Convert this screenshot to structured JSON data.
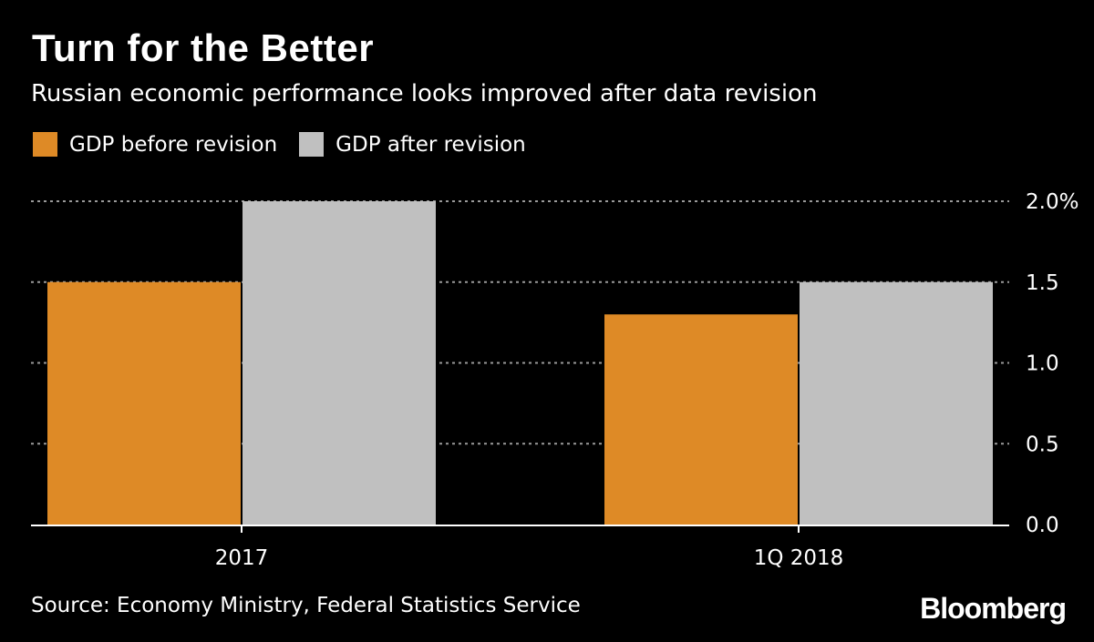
{
  "header": {
    "title": "Turn for the Better",
    "subtitle": "Russian economic performance looks improved after data revision"
  },
  "footer": {
    "source": "Source: Economy Ministry, Federal Statistics Service",
    "brand": "Bloomberg"
  },
  "colors": {
    "background": "#000000",
    "before_revision": "#de8a26",
    "after_revision": "#c0c0c0",
    "grid": "#9a9a9a",
    "text": "#ffffff"
  },
  "chart_data": {
    "type": "bar",
    "title": "Turn for the Better",
    "subtitle": "Russian economic performance looks improved after data revision",
    "categories": [
      "2017",
      "1Q 2018"
    ],
    "series": [
      {
        "name": "GDP before revision",
        "values": [
          1.5,
          1.3
        ],
        "color": "#de8a26"
      },
      {
        "name": "GDP after revision",
        "values": [
          2.0,
          1.5
        ],
        "color": "#c0c0c0"
      }
    ],
    "xlabel": "",
    "ylabel": "",
    "ylim": [
      0,
      2.0
    ],
    "yticks": [
      0,
      0.5,
      1.0,
      1.5,
      2.0
    ],
    "ytick_labels": [
      "0.0",
      "0.5",
      "1.0",
      "1.5",
      "2.0%"
    ],
    "grid": true,
    "legend_position": "top-left",
    "yaxis_side": "right"
  }
}
